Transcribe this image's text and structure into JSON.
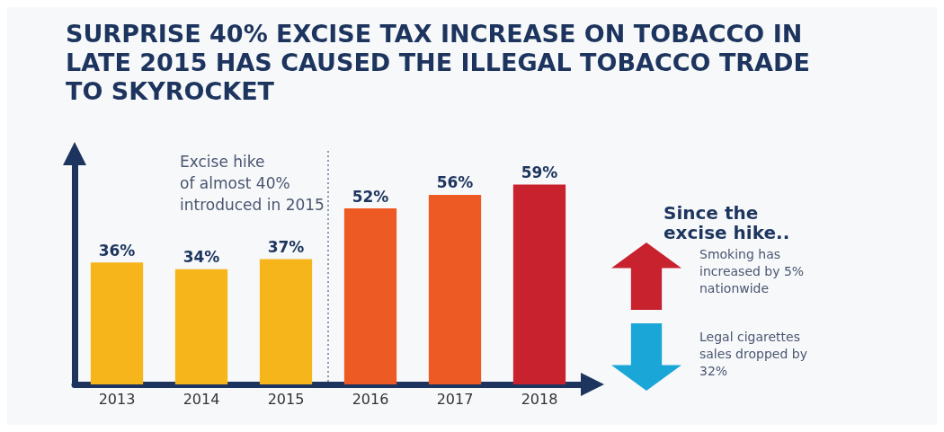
{
  "chart_data": {
    "type": "bar",
    "title": "SURPRISE 40% EXCISE TAX INCREASE ON TOBACCO IN LATE 2015 HAS CAUSED THE ILLEGAL TOBACCO TRADE TO SKYROCKET",
    "categories": [
      "2013",
      "2014",
      "2015",
      "2016",
      "2017",
      "2018"
    ],
    "values": [
      36,
      34,
      37,
      52,
      56,
      59
    ],
    "colors": [
      "#f7b51c",
      "#f7b51c",
      "#f7b51c",
      "#ee5a24",
      "#ee5a24",
      "#c8222e"
    ],
    "value_labels": [
      "36%",
      "34%",
      "37%",
      "52%",
      "56%",
      "59%"
    ],
    "ref_lines": [
      {
        "axis": "x",
        "value": "2015",
        "label": "Excise hike\nof almost 40%\nintroduced in 2015",
        "color": "#6b7a99",
        "line_style": "dotted"
      }
    ],
    "annotations": [
      "Since the excise hike..",
      "Smoking has increased by 5% nationwide",
      "Legal cigarettes sales dropped by 32%"
    ],
    "grid": false
  }
}
